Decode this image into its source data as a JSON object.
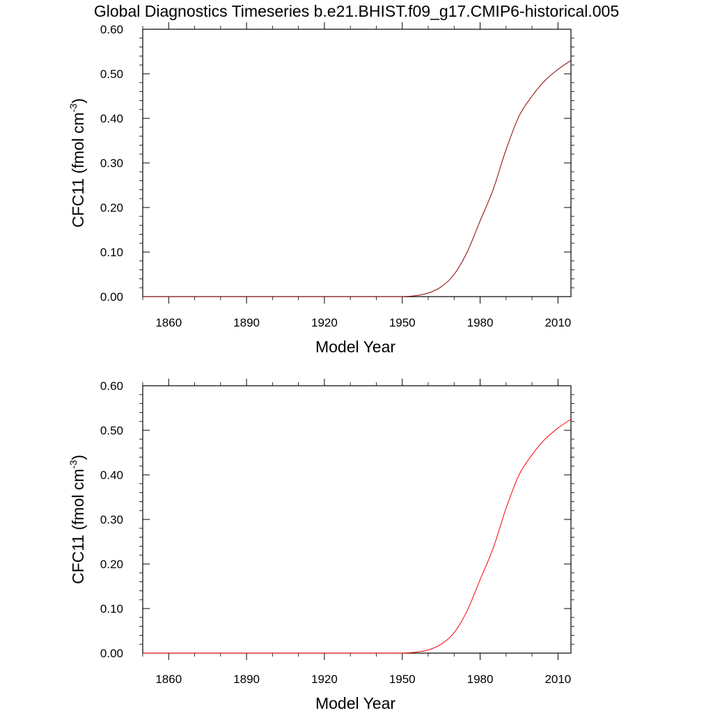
{
  "title": "Global Diagnostics Timeseries b.e21.BHIST.f09_g17.CMIP6-historical.005",
  "chart_data": [
    {
      "type": "line",
      "xlabel": "Model Year",
      "ylabel": "CFC11 (fmol cm",
      "ylabel_sup": "-3",
      "ylabel_close": ")",
      "xlim": [
        1850,
        2015
      ],
      "ylim": [
        0.0,
        0.6
      ],
      "xticks": [
        1860,
        1890,
        1920,
        1950,
        1980,
        2010
      ],
      "yticks": [
        "0.00",
        "0.10",
        "0.20",
        "0.30",
        "0.40",
        "0.50",
        "0.60"
      ],
      "grid": false,
      "line_color": "#8b0000",
      "series": [
        {
          "x": [
            1850,
            1930,
            1945,
            1950,
            1955,
            1960,
            1965,
            1970,
            1975,
            1980,
            1985,
            1990,
            1995,
            2000,
            2005,
            2010,
            2015
          ],
          "y": [
            0.0,
            0.0,
            0.0,
            0.0,
            0.002,
            0.008,
            0.022,
            0.05,
            0.1,
            0.17,
            0.24,
            0.33,
            0.405,
            0.45,
            0.485,
            0.51,
            0.53
          ]
        }
      ]
    },
    {
      "type": "line",
      "xlabel": "Model Year",
      "ylabel": "CFC11 (fmol cm",
      "ylabel_sup": "-3",
      "ylabel_close": ")",
      "xlim": [
        1850,
        2015
      ],
      "ylim": [
        0.0,
        0.6
      ],
      "xticks": [
        1860,
        1890,
        1920,
        1950,
        1980,
        2010
      ],
      "yticks": [
        "0.00",
        "0.10",
        "0.20",
        "0.30",
        "0.40",
        "0.50",
        "0.60"
      ],
      "grid": false,
      "line_color": "#ff0000",
      "series": [
        {
          "x": [
            1850,
            1930,
            1945,
            1950,
            1955,
            1960,
            1965,
            1970,
            1975,
            1980,
            1985,
            1990,
            1995,
            2000,
            2005,
            2010,
            2015
          ],
          "y": [
            0.0,
            0.0,
            0.0,
            0.0,
            0.002,
            0.007,
            0.02,
            0.046,
            0.095,
            0.165,
            0.235,
            0.325,
            0.4,
            0.445,
            0.48,
            0.505,
            0.525
          ]
        }
      ]
    }
  ]
}
